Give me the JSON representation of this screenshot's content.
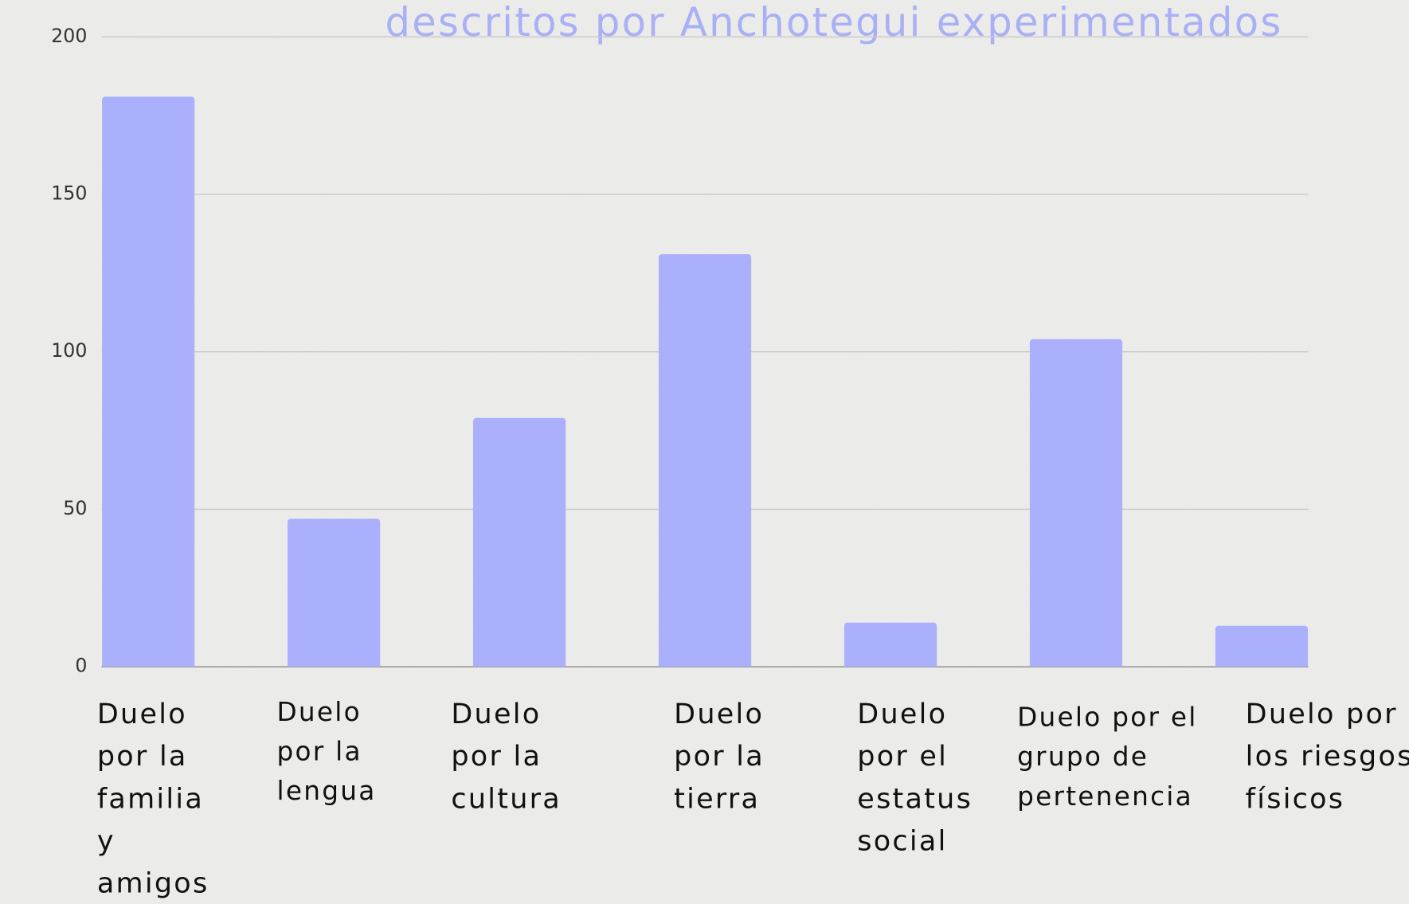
{
  "chart_data": {
    "type": "bar",
    "title": "descritos por Anchotegui experimentados",
    "categories": [
      "Duelo por la familia y amigos",
      "Duelo por la lengua",
      "Duelo por la cultura",
      "Duelo por la tierra",
      "Duelo por el estatus social",
      "Duelo por el grupo de pertenencia",
      "Duelo por los riesgos físicos"
    ],
    "values": [
      181,
      47,
      79,
      131,
      14,
      104,
      13
    ],
    "color": "#aab0fb",
    "ylim": [
      0,
      200
    ],
    "yticks": [
      0,
      50,
      100,
      150,
      200
    ],
    "grid": true
  }
}
